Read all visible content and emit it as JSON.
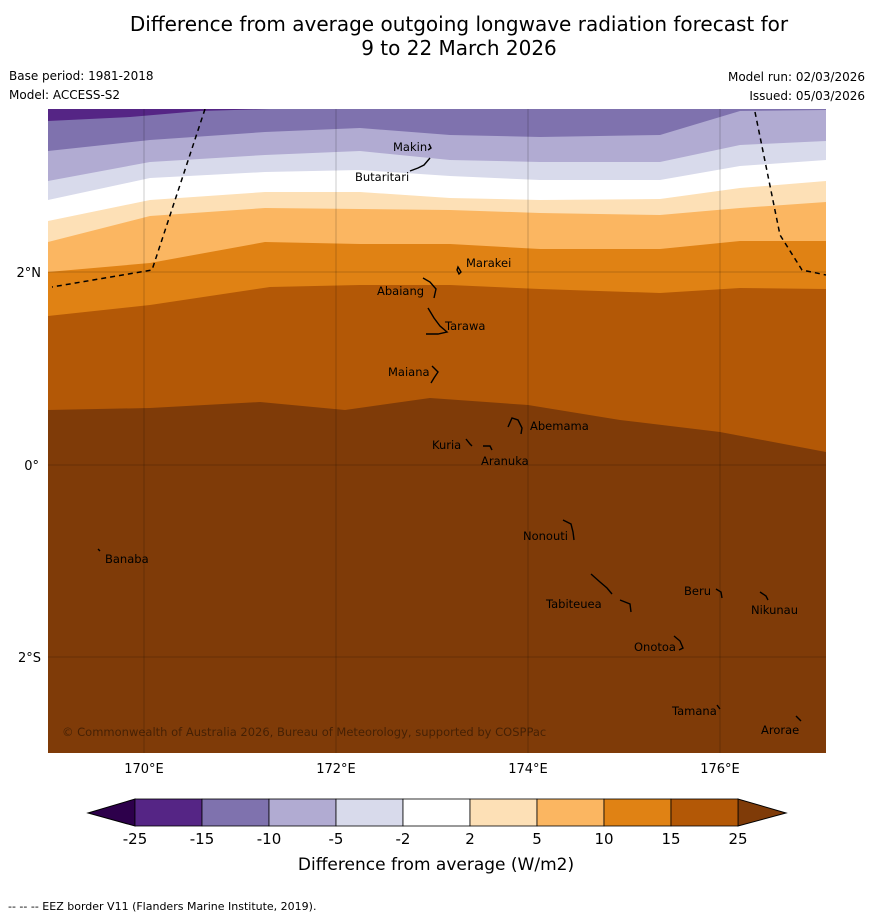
{
  "header": {
    "title_line1": "Difference from average outgoing longwave radiation forecast for",
    "title_line2": "9 to 22 March 2026",
    "base_period": "Base period: 1981-2018",
    "model": "Model: ACCESS-S2",
    "model_run": "Model run: 02/03/2026",
    "issued": "Issued: 05/03/2026"
  },
  "map": {
    "lon_ticks": [
      "170°E",
      "172°E",
      "174°E",
      "176°E"
    ],
    "lat_ticks": [
      "2°N",
      "0°",
      "2°S"
    ],
    "copyright": "© Commonwealth of Australia 2026, Bureau of Meteorology, supported by COSPPac",
    "places": [
      "Makin",
      "Butaritari",
      "Marakei",
      "Abaiang",
      "Tarawa",
      "Maiana",
      "Abemama",
      "Kuria",
      "Aranuka",
      "Nonouti",
      "Banaba",
      "Beru",
      "Nikunau",
      "Tabiteuea",
      "Onotoa",
      "Tamana",
      "Arorae"
    ]
  },
  "colorbar": {
    "tick_labels": [
      "-25",
      "-15",
      "-10",
      "-5",
      "-2",
      "2",
      "5",
      "10",
      "15",
      "25"
    ],
    "colors": [
      "#552585",
      "#7f72ae",
      "#b1abd2",
      "#d8daeb",
      "#ffffff",
      "#fde0b6",
      "#fbb661",
      "#e08214",
      "#b35806",
      "#7f3b08"
    ],
    "under_color": "#2d004b",
    "title": "Difference from average (W/m2)"
  },
  "footer": {
    "eez_note": "--  --  -- EEZ border V11 (Flanders Marine Institute, 2019)."
  }
}
